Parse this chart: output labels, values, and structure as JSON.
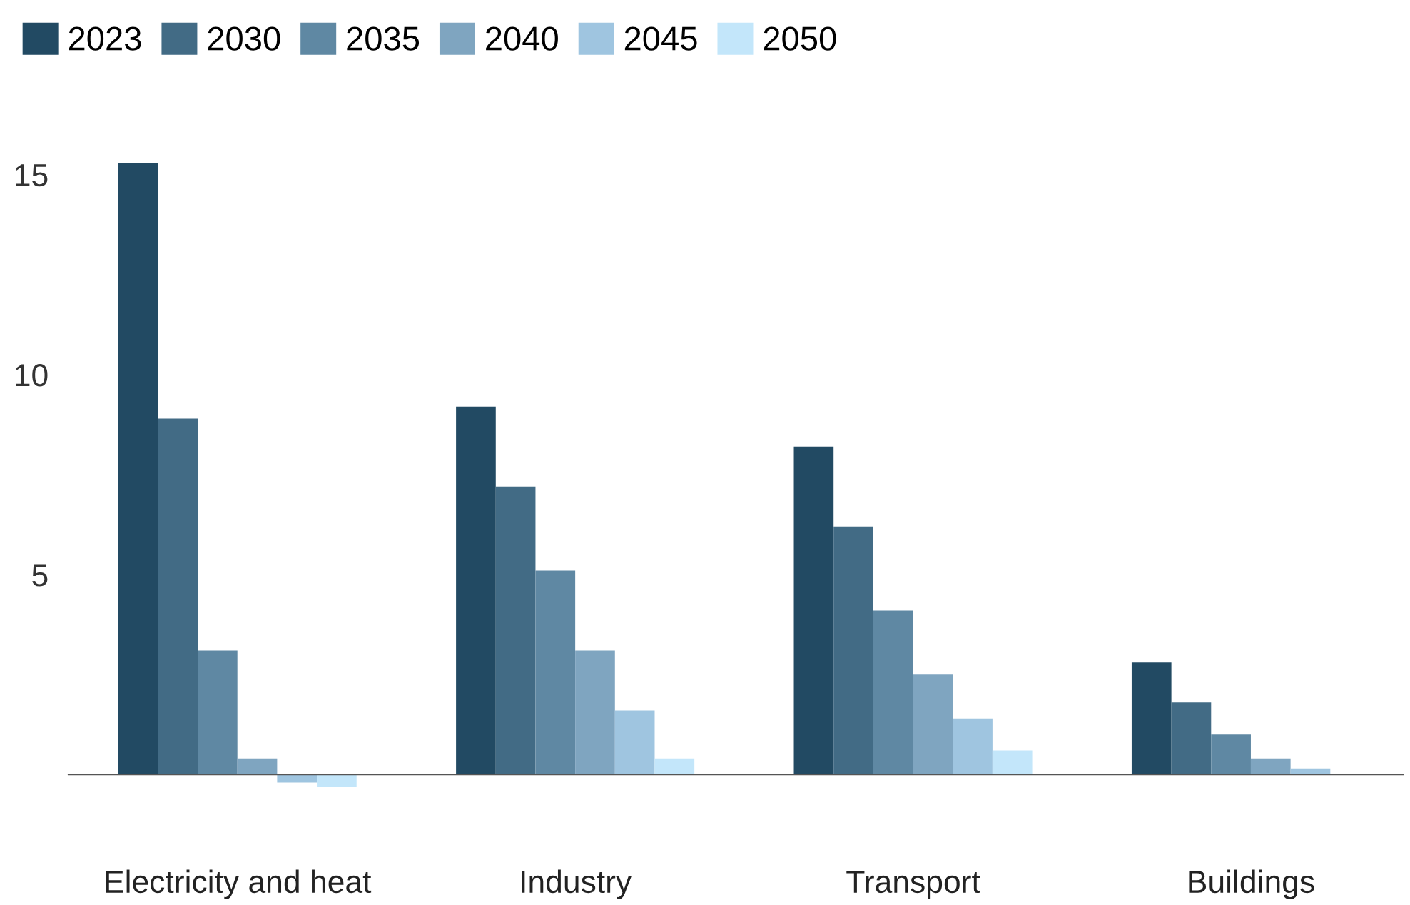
{
  "chart_data": {
    "type": "bar",
    "categories": [
      "Electricity and heat",
      "Industry",
      "Transport",
      "Buildings"
    ],
    "series": [
      {
        "name": "2023",
        "color": "#224a63",
        "values": [
          15.3,
          9.2,
          8.2,
          2.8
        ]
      },
      {
        "name": "2030",
        "color": "#426b85",
        "values": [
          8.9,
          7.2,
          6.2,
          1.8
        ]
      },
      {
        "name": "2035",
        "color": "#5f88a3",
        "values": [
          3.1,
          5.1,
          4.1,
          1.0
        ]
      },
      {
        "name": "2040",
        "color": "#7fa5c0",
        "values": [
          0.4,
          3.1,
          2.5,
          0.4
        ]
      },
      {
        "name": "2045",
        "color": "#9fc5e0",
        "values": [
          -0.2,
          1.6,
          1.4,
          0.15
        ]
      },
      {
        "name": "2050",
        "color": "#c3e6fa",
        "values": [
          -0.3,
          0.4,
          0.6,
          0.0
        ]
      }
    ],
    "ylim": [
      -0.3,
      15.3
    ],
    "yticks": [
      5,
      10,
      15
    ],
    "grid": false,
    "legend": "top left"
  }
}
